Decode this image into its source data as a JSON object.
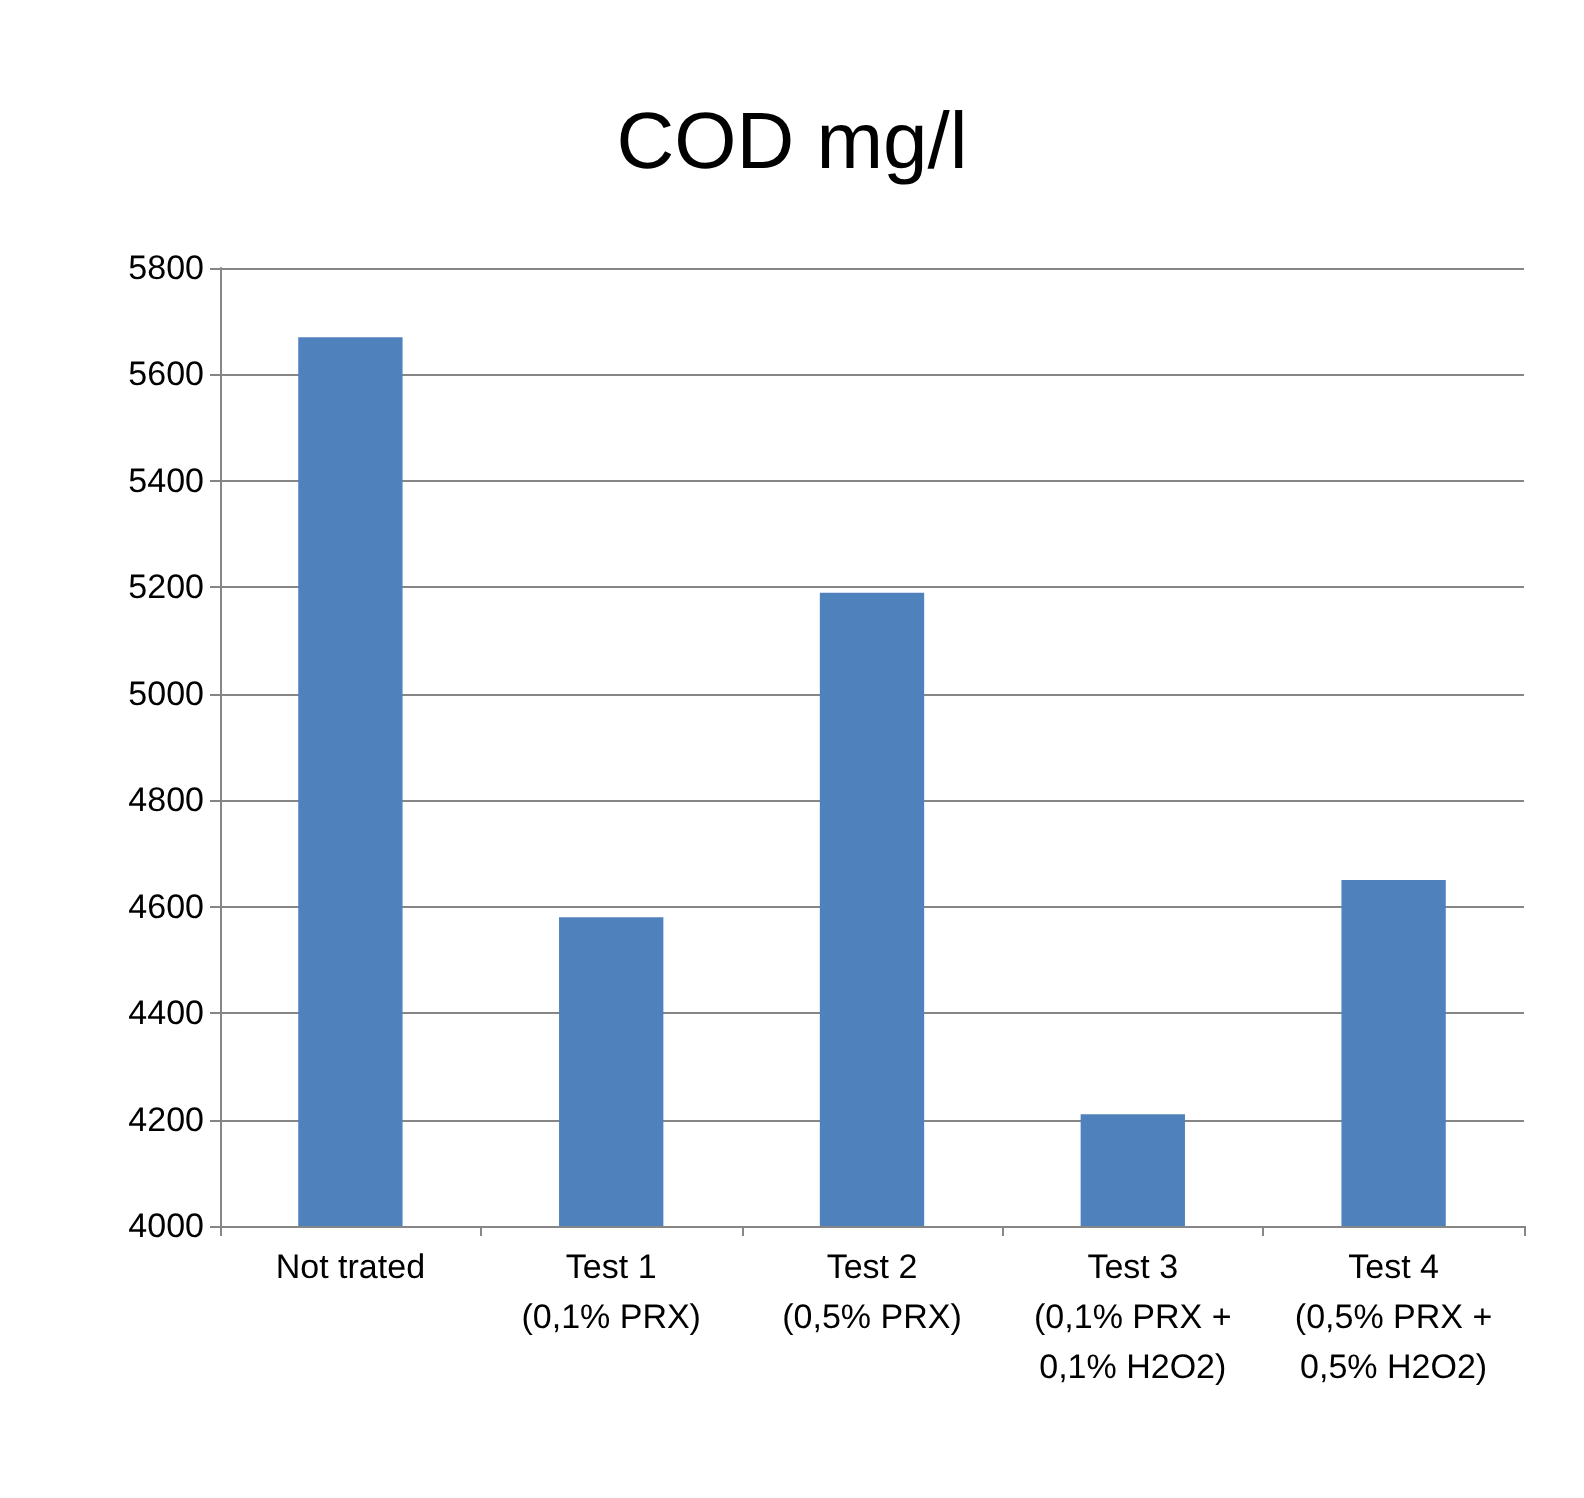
{
  "chart_data": {
    "type": "bar",
    "title": "COD mg/l",
    "categories": [
      "Not trated",
      "Test 1\n(0,1% PRX)",
      "Test 2\n(0,5% PRX)",
      "Test 3\n(0,1% PRX +\n0,1% H2O2)",
      "Test 4\n(0,5% PRX +\n0,5% H2O2)"
    ],
    "values": [
      5670,
      4580,
      5190,
      4210,
      4650
    ],
    "color": "#4f81bd",
    "ylim": [
      4000,
      5800
    ],
    "yticks": [
      4000,
      4200,
      4400,
      4600,
      4800,
      5000,
      5200,
      5400,
      5600,
      5800
    ],
    "grid": "y"
  }
}
